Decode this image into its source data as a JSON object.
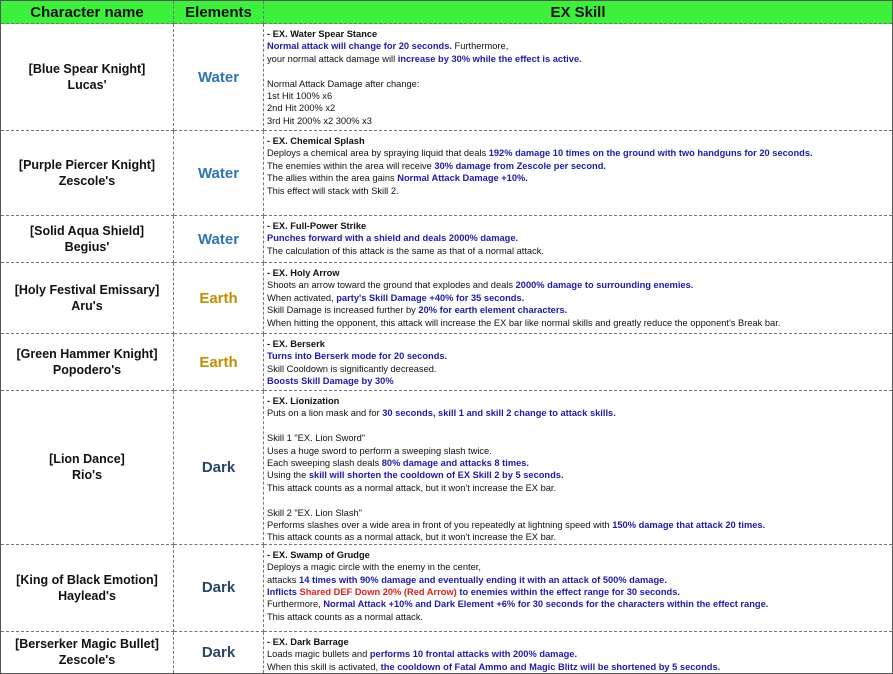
{
  "header": {
    "columns": [
      "Character name",
      "Elements",
      "EX Skill"
    ]
  },
  "rows": [
    {
      "name": [
        "[Blue Spear Knight]",
        "Lucas'"
      ],
      "element": {
        "text": "Water",
        "color": "#2f74b5"
      },
      "skill": [
        [
          [
            {
              "text": "- EX. Water Spear Stance",
              "bold": true
            }
          ],
          [
            {
              "text": "Normal attack will change for 20 seconds.",
              "bold": true,
              "color": "#1c1ca8"
            },
            {
              "text": " Furthermore,"
            }
          ],
          [
            {
              "text": "your normal attack damage will "
            },
            {
              "text": "increase by 30% while the effect is active.",
              "bold": true,
              "color": "#1c1ca8"
            }
          ]
        ],
        [
          [
            {
              "text": "Normal Attack Damage after change:"
            }
          ],
          [
            {
              "text": "1st Hit 100% x6"
            }
          ],
          [
            {
              "text": "2nd Hit 200% x2"
            }
          ],
          [
            {
              "text": "3rd Hit 200% x2 300% x3"
            }
          ]
        ]
      ]
    },
    {
      "name": [
        "[Purple Piercer Knight]",
        "Zescole's"
      ],
      "element": {
        "text": "Water",
        "color": "#2f74b5"
      },
      "skill": [
        [
          [
            {
              "text": "- EX. Chemical Splash",
              "bold": true
            }
          ],
          [
            {
              "text": "Deploys a chemical area by spraying liquid that deals "
            },
            {
              "text": "192% damage 10 times on the ground with two handguns for 20 seconds.",
              "bold": true,
              "color": "#1c1ca8"
            }
          ],
          [
            {
              "text": "The enemies within the area will receive "
            },
            {
              "text": "30% damage from Zescole per second.",
              "bold": true,
              "color": "#1c1ca8"
            }
          ],
          [
            {
              "text": "The allies within the area gains "
            },
            {
              "text": "Normal Attack Damage +10%.",
              "bold": true,
              "color": "#1c1ca8"
            }
          ],
          [
            {
              "text": "This effect will stack with Skill 2."
            }
          ]
        ]
      ]
    },
    {
      "name": [
        "[Solid Aqua Shield]",
        "Begius'"
      ],
      "element": {
        "text": "Water",
        "color": "#2f74b5"
      },
      "skill": [
        [
          [
            {
              "text": "- EX. Full-Power Strike",
              "bold": true
            }
          ],
          [
            {
              "text": "Punches forward with a shield and deals 2000% damage.",
              "bold": true,
              "color": "#1c1ca8"
            }
          ],
          [
            {
              "text": "The calculation of this attack is the same as that of a normal attack."
            }
          ]
        ]
      ]
    },
    {
      "name": [
        "[Holy Festival Emissary]",
        "Aru's"
      ],
      "element": {
        "text": "Earth",
        "color": "#bf9000"
      },
      "skill": [
        [
          [
            {
              "text": "- EX. Holy Arrow",
              "bold": true
            }
          ],
          [
            {
              "text": "Shoots an arrow toward the ground that explodes and deals "
            },
            {
              "text": "2000% damage to surrounding enemies.",
              "bold": true,
              "color": "#1c1ca8"
            }
          ],
          [
            {
              "text": "When activated, "
            },
            {
              "text": "party's Skill Damage +40% for 35 seconds.",
              "bold": true,
              "color": "#1c1ca8"
            }
          ],
          [
            {
              "text": "Skill Damage is increased further by "
            },
            {
              "text": "20% for earth element characters.",
              "bold": true,
              "color": "#1c1ca8"
            }
          ],
          [
            {
              "text": "When hitting the opponent, this attack will increase the EX bar like normal skills and greatly reduce the opponent's Break bar."
            }
          ]
        ]
      ]
    },
    {
      "name": [
        "[Green Hammer Knight]",
        "Popodero's"
      ],
      "element": {
        "text": "Earth",
        "color": "#bf9000"
      },
      "skill": [
        [
          [
            {
              "text": "- EX. Berserk",
              "bold": true
            }
          ],
          [
            {
              "text": "Turns into Berserk mode for 20 seconds.",
              "bold": true,
              "color": "#1c1ca8"
            }
          ],
          [
            {
              "text": "Skill Cooldown is significantly decreased."
            }
          ],
          [
            {
              "text": "Boosts Skill Damage by 30%",
              "bold": true,
              "color": "#1c1ca8"
            }
          ]
        ]
      ]
    },
    {
      "name": [
        "[Lion Dance]",
        "Rio's"
      ],
      "element": {
        "text": "Dark",
        "color": "#2b4566"
      },
      "skill": [
        [
          [
            {
              "text": "- EX. Lionization",
              "bold": true
            }
          ],
          [
            {
              "text": "Puts on a lion mask and for "
            },
            {
              "text": "30 seconds, skill 1 and skill 2 change to attack skills.",
              "bold": true,
              "color": "#1c1ca8"
            }
          ]
        ],
        [
          [
            {
              "text": "Skill 1 \"EX. Lion Sword\""
            }
          ],
          [
            {
              "text": "Uses a huge sword to perform a sweeping slash twice."
            }
          ],
          [
            {
              "text": "Each sweeping slash deals "
            },
            {
              "text": "80% damage and attacks 8 times.",
              "bold": true,
              "color": "#1c1ca8"
            }
          ],
          [
            {
              "text": "Using the "
            },
            {
              "text": "skill will shorten the cooldown of EX Skill 2 by 5 seconds.",
              "bold": true,
              "color": "#1c1ca8"
            }
          ],
          [
            {
              "text": "This attack counts as a normal attack, but it won't increase the EX bar."
            }
          ]
        ],
        [
          [
            {
              "text": "Skill 2 \"EX. Lion Slash\""
            }
          ],
          [
            {
              "text": "Performs slashes over a wide area in front of you repeatedly at lightning speed with "
            },
            {
              "text": "150% damage that attack 20 times.",
              "bold": true,
              "color": "#1c1ca8"
            }
          ],
          [
            {
              "text": "This attack counts as a normal attack, but it won't increase the EX bar."
            }
          ]
        ]
      ]
    },
    {
      "name": [
        "[King of Black Emotion]",
        "Haylead's"
      ],
      "element": {
        "text": "Dark",
        "color": "#2b4566"
      },
      "skill": [
        [
          [
            {
              "text": "- EX. Swamp of Grudge",
              "bold": true
            }
          ],
          [
            {
              "text": "Deploys a magic circle with the enemy in the center,"
            }
          ],
          [
            {
              "text": "attacks "
            },
            {
              "text": "14 times with 90% damage and eventually ending it with an attack of 500% damage.",
              "bold": true,
              "color": "#1c1ca8"
            }
          ],
          [
            {
              "text": "Inflicts ",
              "bold": true,
              "color": "#1c1ca8"
            },
            {
              "text": "Shared DEF Down 20% (Red Arrow)",
              "bold": true,
              "color": "#e02020"
            },
            {
              "text": " to enemies within the effect range for 30 seconds.",
              "bold": true,
              "color": "#1c1ca8"
            }
          ],
          [
            {
              "text": "Furthermore, "
            },
            {
              "text": "Normal Attack +10% and Dark Element +6% for 30 seconds for the characters within the effect range.",
              "bold": true,
              "color": "#1c1ca8"
            }
          ],
          [
            {
              "text": "This attack counts as a normal attack."
            }
          ]
        ]
      ]
    },
    {
      "name": [
        "[Berserker Magic Bullet]",
        "Zescole's"
      ],
      "element": {
        "text": "Dark",
        "color": "#2b4566"
      },
      "skill": [
        [
          [
            {
              "text": "- EX. Dark Barrage",
              "bold": true
            }
          ],
          [
            {
              "text": "Loads magic bullets and "
            },
            {
              "text": "performs 10 frontal attacks with 200% damage.",
              "bold": true,
              "color": "#1c1ca8"
            }
          ],
          [
            {
              "text": "When this skill is activated, "
            },
            {
              "text": "the cooldown of Fatal Ammo and Magic Blitz will be shortened by 5 seconds.",
              "bold": true,
              "color": "#1c1ca8"
            }
          ]
        ]
      ]
    }
  ]
}
